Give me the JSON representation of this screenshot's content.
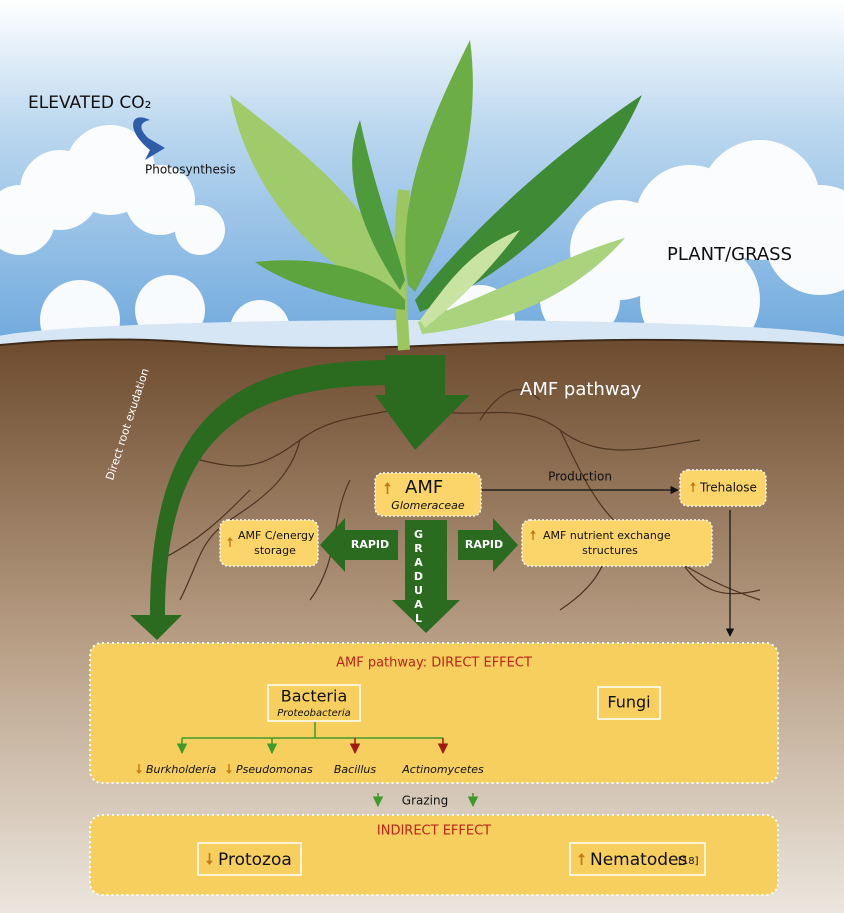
{
  "sky": {
    "co2_label": "ELEVATED CO₂",
    "photosynthesis": "Photosynthesis",
    "plant_label": "PLANT/GRASS"
  },
  "soil": {
    "pathway_label": "AMF pathway",
    "root_exudation": "Direct root exudation"
  },
  "amf": {
    "label": "AMF",
    "taxon": "Glomeraceae"
  },
  "production": "Production",
  "trehalose": "Trehalose",
  "storage": [
    "AMF C/energy",
    "storage"
  ],
  "rapid_left": "RAPID",
  "rapid_right": "RAPID",
  "gradual": "GRADUAL",
  "nutrient": [
    "AMF nutrient exchange",
    "structures"
  ],
  "direct": {
    "title": "AMF pathway: DIRECT EFFECT",
    "bacteria": "Bacteria",
    "bacteria_taxon": "Proteobacteria",
    "fungi": "Fungi",
    "taxa": [
      "Burkholderia",
      "Pseudomonas",
      "Bacillus",
      "Actinomycetes"
    ]
  },
  "grazing": "Grazing",
  "indirect": {
    "title": "INDIRECT EFFECT",
    "protozoa": "Protozoa",
    "nematodes": "Nematodes",
    "ref": "[18]"
  }
}
